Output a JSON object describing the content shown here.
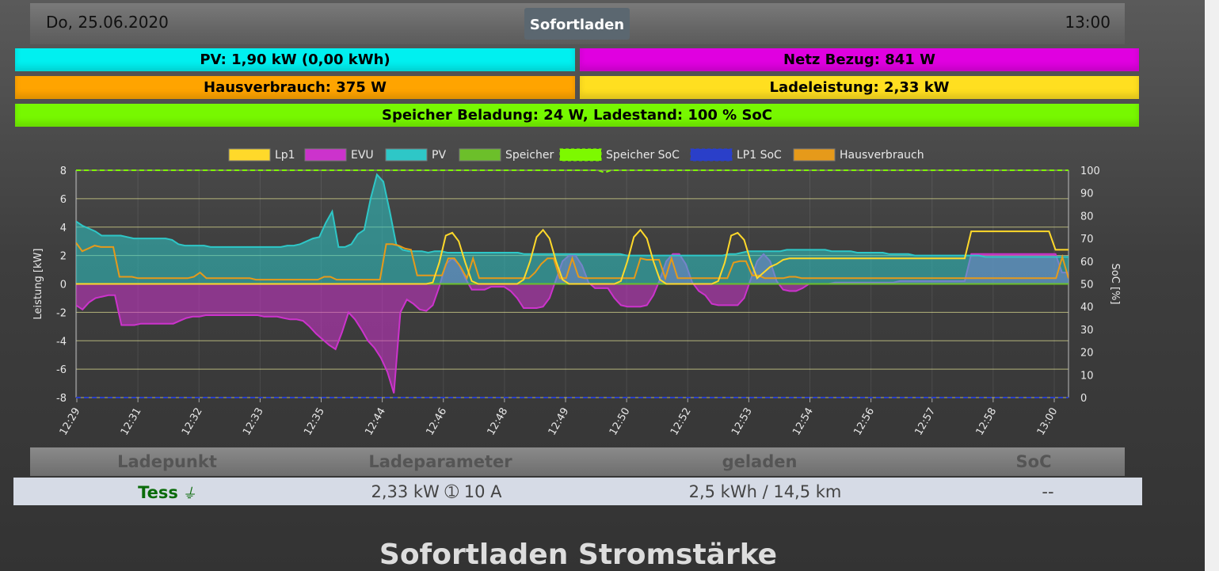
{
  "header": {
    "date": "Do, 25.06.2020",
    "mode_button": "Sofortladen",
    "time": "13:00"
  },
  "status": {
    "pv": "PV: 1,90 kW (0,00 kWh)",
    "netz": "Netz Bezug: 841 W",
    "hausverbrauch": "Hausverbrauch: 375 W",
    "ladeleistung": "Ladeleistung: 2,33 kW",
    "speicher": "Speicher Beladung: 24 W, Ladestand: 100 % SoC"
  },
  "chart_data": {
    "type": "line",
    "ylabel": "Leistung [kW]",
    "y2label": "SoC [%]",
    "ylim": [
      -8,
      8
    ],
    "y2lim": [
      0,
      100
    ],
    "yticks": [
      "8",
      "6",
      "4",
      "2",
      "0",
      "-2",
      "-4",
      "-6",
      "-8"
    ],
    "y2ticks": [
      "100",
      "90",
      "80",
      "70",
      "60",
      "50",
      "40",
      "30",
      "20",
      "10",
      "0"
    ],
    "x_ticks": [
      "12:29",
      "12:31",
      "12:32",
      "12:33",
      "12:35",
      "12:44",
      "12:46",
      "12:48",
      "12:49",
      "12:50",
      "12:52",
      "12:53",
      "12:54",
      "12:56",
      "12:57",
      "12:58",
      "13:00"
    ],
    "grid": true,
    "legend_position": "top",
    "series": [
      {
        "name": "Lp1",
        "color": "#ffd92a",
        "axis": "left",
        "fill": false,
        "values": [
          0,
          0,
          0,
          0,
          0,
          0,
          0,
          0,
          0,
          0,
          0,
          0,
          0,
          0,
          0,
          0,
          0,
          0,
          0,
          0,
          0,
          0,
          0,
          0,
          0,
          0,
          0,
          0,
          0,
          0,
          0,
          0,
          0,
          0,
          0,
          0,
          0,
          0,
          0,
          0,
          0,
          0,
          0,
          0,
          0,
          0,
          0,
          0,
          0,
          0,
          0,
          0,
          0,
          0,
          0,
          0.1,
          1.5,
          3.4,
          3.6,
          3,
          1.5,
          0.2,
          0,
          0,
          0,
          0,
          0,
          0,
          0,
          0.3,
          1.6,
          3.3,
          3.8,
          3.2,
          1.6,
          0.3,
          0,
          0,
          0,
          0,
          0,
          0,
          0,
          0,
          0.2,
          1.6,
          3.3,
          3.8,
          3.2,
          1.6,
          0.3,
          0,
          0,
          0,
          0,
          0,
          0,
          0,
          0,
          0.2,
          1.5,
          3.4,
          3.6,
          3.1,
          1.6,
          0.4,
          0.8,
          1.2,
          1.4,
          1.7,
          1.8,
          1.8,
          1.8,
          1.8,
          1.8,
          1.8,
          1.8,
          1.8,
          1.8,
          1.8,
          1.8,
          1.8,
          1.8,
          1.8,
          1.8,
          1.8,
          1.8,
          1.8,
          1.8,
          1.8,
          1.8,
          1.8,
          1.8,
          1.8,
          1.8,
          1.8,
          1.8,
          1.8,
          3.7,
          3.7,
          3.7,
          3.7,
          3.7,
          3.7,
          3.7,
          3.7,
          3.7,
          3.7,
          3.7,
          3.7,
          3.7,
          2.4,
          2.4,
          2.4
        ]
      },
      {
        "name": "EVU",
        "color": "#cc33cc",
        "axis": "left",
        "fill": true,
        "values": [
          -1.5,
          -1.8,
          -1.3,
          -1,
          -0.9,
          -0.8,
          -0.8,
          -2.9,
          -2.9,
          -2.9,
          -2.8,
          -2.8,
          -2.8,
          -2.8,
          -2.8,
          -2.8,
          -2.6,
          -2.4,
          -2.3,
          -2.3,
          -2.2,
          -2.2,
          -2.2,
          -2.2,
          -2.2,
          -2.2,
          -2.2,
          -2.2,
          -2.2,
          -2.3,
          -2.3,
          -2.3,
          -2.4,
          -2.5,
          -2.5,
          -2.6,
          -3,
          -3.5,
          -3.9,
          -4.3,
          -4.6,
          -3.4,
          -2,
          -2.5,
          -3.2,
          -4,
          -4.5,
          -5.2,
          -6.2,
          -7.7,
          -2,
          -1.1,
          -1.4,
          -1.8,
          -1.9,
          -1.5,
          -0.2,
          1.4,
          1.8,
          1.4,
          0.4,
          -0.4,
          -0.4,
          -0.4,
          -0.2,
          -0.2,
          -0.2,
          -0.5,
          -1,
          -1.7,
          -1.7,
          -1.7,
          -1.6,
          -1,
          0.3,
          1.6,
          2,
          2,
          1.3,
          0.1,
          -0.3,
          -0.3,
          -0.3,
          -1,
          -1.5,
          -1.6,
          -1.6,
          -1.6,
          -1.5,
          -0.8,
          0.3,
          1.6,
          2.1,
          2.1,
          1.4,
          0.1,
          -0.5,
          -0.8,
          -1.4,
          -1.5,
          -1.5,
          -1.5,
          -1.5,
          -1,
          0.3,
          1.6,
          2.1,
          1.6,
          0.2,
          -0.4,
          -0.5,
          -0.5,
          -0.3,
          0,
          0,
          0,
          0,
          0.1,
          0.1,
          0.1,
          0.1,
          0.1,
          0.1,
          0.1,
          0.1,
          0.1,
          0.1,
          0.2,
          0.2,
          0.2,
          0.2,
          0.2,
          0.2,
          0.2,
          0.2,
          0.2,
          0.2,
          0.2,
          2.1,
          2.1,
          2.1,
          2.1,
          2.1,
          2.1,
          2.1,
          2.1,
          2.1,
          2.1,
          2.1,
          2.1,
          2.1,
          2.1,
          0.8,
          0.8
        ]
      },
      {
        "name": "PV",
        "color": "#2ec7c7",
        "axis": "left",
        "fill": true,
        "values": [
          4.4,
          4.1,
          3.9,
          3.7,
          3.4,
          3.4,
          3.4,
          3.4,
          3.3,
          3.2,
          3.2,
          3.2,
          3.2,
          3.2,
          3.2,
          3.1,
          2.8,
          2.7,
          2.7,
          2.7,
          2.7,
          2.6,
          2.6,
          2.6,
          2.6,
          2.6,
          2.6,
          2.6,
          2.6,
          2.6,
          2.6,
          2.6,
          2.6,
          2.7,
          2.7,
          2.8,
          3,
          3.2,
          3.3,
          4.3,
          5.1,
          2.6,
          2.6,
          2.8,
          3.5,
          3.8,
          6,
          7.7,
          7.2,
          5.1,
          2.8,
          2.4,
          2.3,
          2.3,
          2.3,
          2.2,
          2.3,
          2.3,
          2.2,
          2.2,
          2.2,
          2.2,
          2.2,
          2.2,
          2.2,
          2.2,
          2.2,
          2.2,
          2.2,
          2.2,
          2.1,
          2.1,
          2.1,
          2.1,
          2.1,
          2.1,
          2.1,
          2.1,
          2.1,
          2.1,
          2.1,
          2.1,
          2.1,
          2.1,
          2.1,
          2.1,
          2,
          2,
          2,
          2,
          2,
          2,
          2,
          2,
          2,
          2,
          2,
          2,
          2,
          2,
          2,
          2,
          2.1,
          2.1,
          2.2,
          2.3,
          2.3,
          2.3,
          2.3,
          2.3,
          2.3,
          2.4,
          2.4,
          2.4,
          2.4,
          2.4,
          2.4,
          2.4,
          2.3,
          2.3,
          2.3,
          2.3,
          2.2,
          2.2,
          2.2,
          2.2,
          2.2,
          2.1,
          2.1,
          2.1,
          2.1,
          2,
          2,
          2,
          2,
          2,
          2,
          2,
          2,
          2,
          2,
          2,
          1.9,
          1.9,
          1.9,
          1.9,
          1.9,
          1.9,
          1.9,
          1.9,
          1.9,
          1.9,
          1.9,
          1.9,
          1.9,
          1.9
        ]
      },
      {
        "name": "Speicher",
        "color": "#6cbf2a",
        "axis": "left",
        "fill": false,
        "values": [
          0,
          0,
          0,
          0,
          0,
          0,
          0,
          0,
          0,
          0,
          0,
          0,
          0,
          0,
          0,
          0,
          0,
          0,
          0,
          0,
          0,
          0,
          0,
          0,
          0,
          0,
          0,
          0,
          0,
          0,
          0,
          0,
          0,
          0,
          0,
          0,
          0,
          0,
          0,
          0,
          0,
          0,
          0,
          0,
          0,
          0,
          0,
          0,
          0,
          0,
          0,
          0,
          0,
          0,
          0,
          0,
          0,
          0,
          0,
          0,
          0,
          0,
          0,
          0,
          0,
          0,
          0,
          0,
          0,
          0,
          0,
          0,
          0,
          0,
          0,
          0,
          0,
          0,
          0,
          0,
          0,
          0,
          0,
          0,
          0,
          0,
          0,
          0,
          0,
          0,
          0,
          0,
          0,
          0,
          0,
          0,
          0,
          0,
          0,
          0,
          0,
          0,
          0,
          0,
          0,
          0,
          0,
          0,
          0,
          0,
          0,
          0,
          0,
          0,
          0,
          0,
          0,
          0,
          0,
          0,
          0,
          0,
          0,
          0,
          0,
          0,
          0,
          0,
          0,
          0,
          0,
          0,
          0,
          0,
          0,
          0,
          0,
          0,
          0,
          0,
          0,
          0,
          0,
          0,
          0,
          0,
          0,
          0,
          0,
          0,
          0,
          0,
          0,
          0,
          0
        ]
      },
      {
        "name": "Speicher SoC",
        "color": "#7df900",
        "axis": "right",
        "dashed": true,
        "values": [
          100,
          100,
          100,
          100,
          100,
          100,
          100,
          100,
          100,
          100,
          100,
          100,
          100,
          100,
          100,
          100,
          100,
          100,
          100,
          100,
          100,
          100,
          100,
          100,
          100,
          100,
          100,
          100,
          100,
          100,
          100,
          100,
          100,
          100,
          100,
          100,
          100,
          100,
          100,
          100,
          100,
          100,
          100,
          100,
          100,
          100,
          100,
          100,
          100,
          100,
          100,
          100,
          100,
          100,
          100,
          100,
          100,
          100,
          100,
          100,
          100,
          100,
          100,
          100,
          100,
          100,
          100,
          100,
          100,
          100,
          100,
          100,
          100,
          100,
          100,
          100,
          100,
          100,
          100,
          100,
          100,
          100,
          99,
          100,
          100,
          100,
          100,
          100,
          100,
          100,
          100,
          100,
          100,
          100,
          100,
          100,
          100,
          100,
          100,
          100,
          100,
          100,
          100,
          100,
          100,
          100,
          100,
          100,
          100,
          100,
          100,
          100,
          100,
          100,
          100,
          100,
          100,
          100,
          100,
          100,
          100,
          100,
          100,
          100,
          100,
          100,
          100,
          100,
          100,
          100,
          100,
          100,
          100,
          100,
          100,
          100,
          100,
          100,
          100,
          100,
          100,
          100,
          100,
          100,
          100,
          100,
          100,
          100,
          100,
          100,
          100,
          100,
          100,
          100,
          100
        ]
      },
      {
        "name": "LP1 SoC",
        "color": "#2a3fc9",
        "axis": "right",
        "dashed": true,
        "values": [
          0,
          0,
          0,
          0,
          0,
          0,
          0,
          0,
          0,
          0,
          0,
          0,
          0,
          0,
          0,
          0,
          0,
          0,
          0,
          0,
          0,
          0,
          0,
          0,
          0,
          0,
          0,
          0,
          0,
          0,
          0,
          0,
          0,
          0,
          0,
          0,
          0,
          0,
          0,
          0,
          0,
          0,
          0,
          0,
          0,
          0,
          0,
          0,
          0,
          0,
          0,
          0,
          0,
          0,
          0,
          0,
          0,
          0,
          0,
          0,
          0,
          0,
          0,
          0,
          0,
          0,
          0,
          0,
          0,
          0,
          0,
          0,
          0,
          0,
          0,
          0,
          0,
          0,
          0,
          0,
          0,
          0,
          0,
          0,
          0,
          0,
          0,
          0,
          0,
          0,
          0,
          0,
          0,
          0,
          0,
          0,
          0,
          0,
          0,
          0,
          0,
          0,
          0,
          0,
          0,
          0,
          0,
          0,
          0,
          0,
          0,
          0,
          0,
          0,
          0,
          0,
          0,
          0,
          0,
          0,
          0,
          0,
          0,
          0,
          0,
          0,
          0,
          0,
          0,
          0,
          0,
          0,
          0,
          0,
          0,
          0,
          0,
          0,
          0,
          0,
          0,
          0,
          0,
          0,
          0,
          0,
          0,
          0,
          0,
          0,
          0,
          0,
          0,
          0,
          0
        ]
      },
      {
        "name": "Hausverbrauch",
        "color": "#e69a1a",
        "axis": "left",
        "fill": false,
        "values": [
          2.9,
          2.3,
          2.5,
          2.7,
          2.6,
          2.6,
          2.6,
          0.5,
          0.5,
          0.5,
          0.4,
          0.4,
          0.4,
          0.4,
          0.4,
          0.4,
          0.4,
          0.4,
          0.4,
          0.5,
          0.8,
          0.4,
          0.4,
          0.4,
          0.4,
          0.4,
          0.4,
          0.4,
          0.4,
          0.3,
          0.3,
          0.3,
          0.3,
          0.3,
          0.3,
          0.3,
          0.3,
          0.3,
          0.3,
          0.3,
          0.5,
          0.5,
          0.3,
          0.3,
          0.3,
          0.3,
          0.3,
          0.3,
          0.3,
          0.3,
          2.8,
          2.8,
          2.7,
          2.5,
          2.4,
          0.6,
          0.6,
          0.6,
          0.6,
          0.6,
          1.8,
          1.8,
          1.2,
          0.4,
          1.8,
          0.4,
          0.4,
          0.4,
          0.4,
          0.4,
          0.4,
          0.4,
          0.4,
          0.4,
          0.8,
          1.4,
          1.8,
          1.8,
          0.4,
          0.4,
          1.8,
          0.5,
          0.4,
          0.4,
          0.4,
          0.4,
          0.4,
          0.4,
          0.4,
          0.4,
          0.4,
          1.8,
          1.7,
          1.7,
          1.7,
          0.4,
          1.8,
          0.4,
          0.4,
          0.4,
          0.4,
          0.4,
          0.4,
          0.4,
          0.4,
          0.4,
          1.5,
          1.6,
          1.6,
          0.6,
          0.6,
          0.4,
          0.4,
          0.4,
          0.4,
          0.5,
          0.5,
          0.4,
          0.4,
          0.4,
          0.4,
          0.4,
          0.4,
          0.4,
          0.4,
          0.4,
          0.4,
          0.4,
          0.4,
          0.4,
          0.4,
          0.4,
          0.4,
          0.4,
          0.4,
          0.4,
          0.4,
          0.4,
          0.4,
          0.4,
          0.4,
          0.4,
          0.4,
          0.4,
          0.4,
          0.4,
          0.4,
          0.4,
          0.4,
          0.4,
          0.4,
          0.4,
          0.4,
          0.4,
          0.4,
          0.4,
          0.4,
          0.4,
          0.4,
          1.9,
          0.4
        ]
      }
    ]
  },
  "table": {
    "headers": [
      "Ladepunkt",
      "Ladeparameter",
      "geladen",
      "SoC"
    ],
    "row": {
      "ladepunkt": "Tess",
      "ladeparameter": "2,33 kW ➀ 10 A",
      "geladen": "2,5 kWh / 14,5 km",
      "soc": "--"
    },
    "plug_icon": "plug-icon"
  },
  "section_title": "Sofortladen Stromstärke"
}
